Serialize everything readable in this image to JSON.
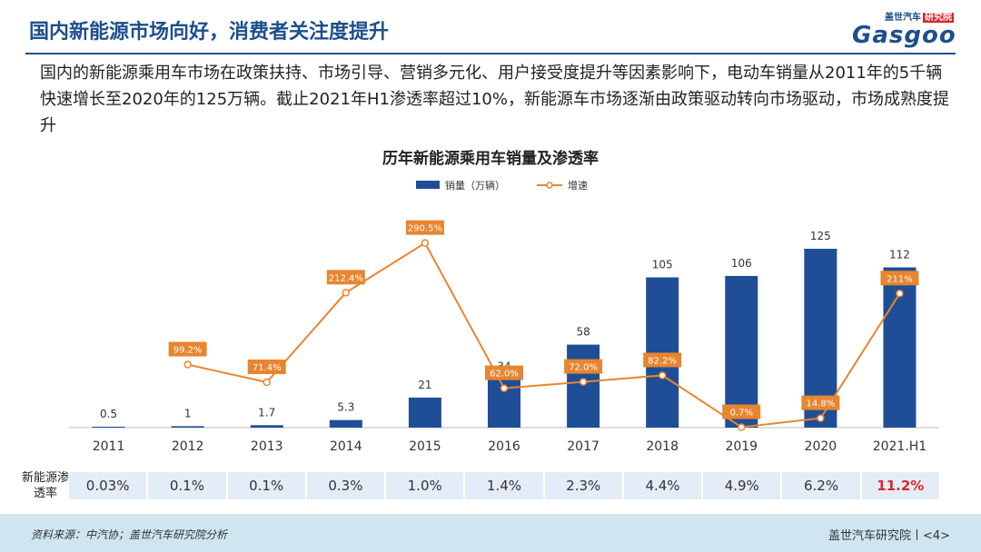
{
  "header": {
    "title": "国内新能源市场向好，消费者关注度提升",
    "logo_top": "盖世汽车",
    "logo_badge": "研究院",
    "logo_main": "Gasgoo"
  },
  "intro": "国内的新能源乘用车市场在政策扶持、市场引导、营销多元化、用户接受度提升等因素影响下，电动车销量从2011年的5千辆快速增长至2020年的125万辆。截止2021年H1渗透率超过10%，新能源车市场逐渐由政策驱动转向市场驱动，市场成熟度提升",
  "chart_data": {
    "type": "bar+line",
    "title": "历年新能源乘用车销量及渗透率",
    "categories": [
      "2011",
      "2012",
      "2013",
      "2014",
      "2015",
      "2016",
      "2017",
      "2018",
      "2019",
      "2020",
      "2021.H1"
    ],
    "series": [
      {
        "name": "销量（万辆）",
        "type": "bar",
        "color": "#1f4e96",
        "values": [
          0.5,
          1,
          1.7,
          5.3,
          21,
          34,
          58,
          105,
          106,
          125,
          112
        ],
        "labels": [
          "0.5",
          "1",
          "1.7",
          "5.3",
          "21",
          "34",
          "58",
          "105",
          "106",
          "125",
          "112"
        ]
      },
      {
        "name": "增速",
        "type": "line",
        "color": "#e8852f",
        "values": [
          null,
          99.2,
          71.4,
          212.4,
          290.5,
          62.0,
          72.0,
          82.2,
          0.7,
          14.8,
          211
        ],
        "labels": [
          "",
          "99.2%",
          "71.4%",
          "212.4%",
          "290.5%",
          "62.0%",
          "72.0%",
          "82.2%",
          "0.7%",
          "14.8%",
          "211%"
        ]
      }
    ],
    "legend_position": "top-center",
    "penetration": {
      "label": "新能源渗透率",
      "values": [
        "0.03%",
        "0.1%",
        "0.1%",
        "0.3%",
        "1.0%",
        "1.4%",
        "2.3%",
        "4.4%",
        "4.9%",
        "6.2%",
        "11.2%"
      ],
      "highlight_index": 10
    }
  },
  "footer": {
    "source": "资料来源：中汽协；盖世汽车研究院分析",
    "org": "盖世汽车研究院丨<4>"
  },
  "colors": {
    "primary": "#1d4f8c",
    "bar": "#1f4e96",
    "line": "#e8852f",
    "accent": "#d8262f",
    "footer_bg": "#cfe6f1"
  }
}
